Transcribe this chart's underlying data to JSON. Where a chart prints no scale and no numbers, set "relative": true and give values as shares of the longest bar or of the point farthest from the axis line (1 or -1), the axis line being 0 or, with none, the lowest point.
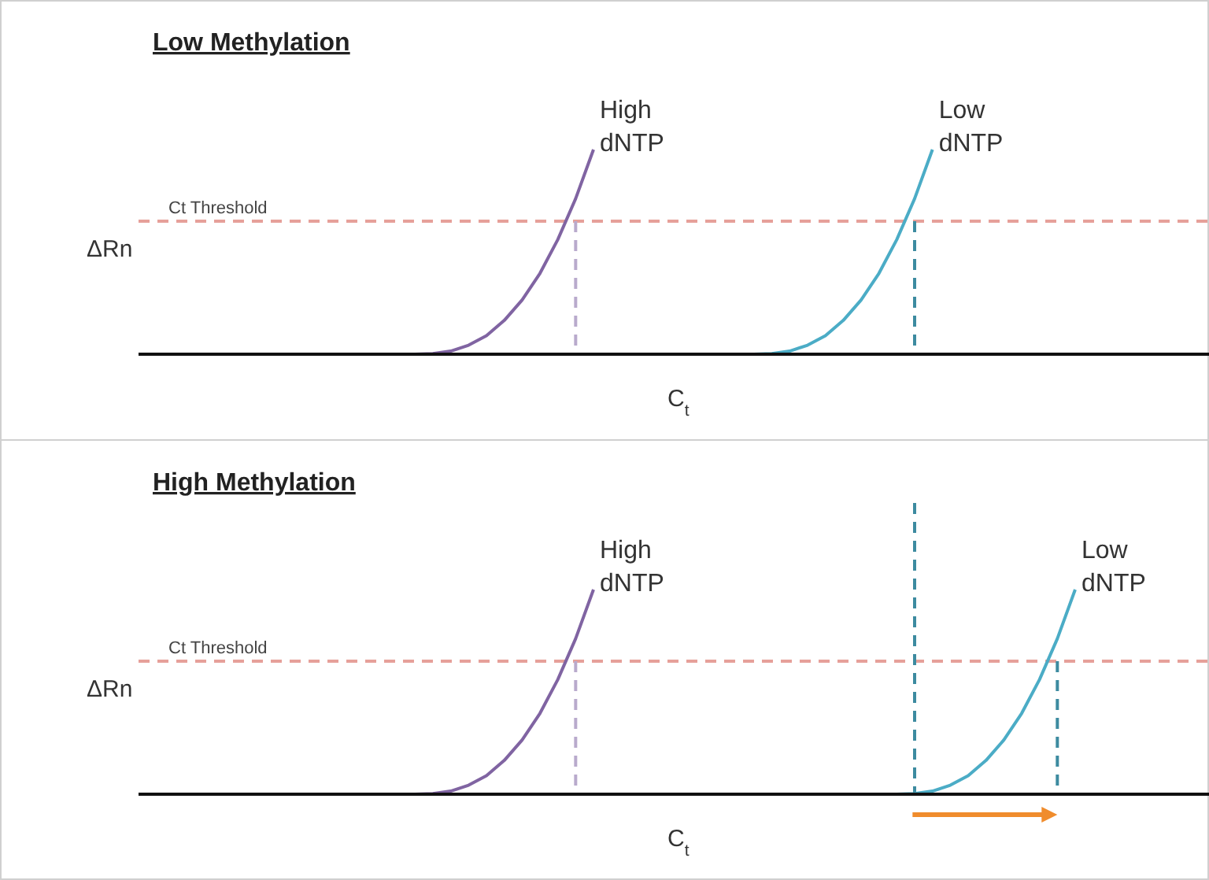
{
  "chart_data": [
    {
      "type": "line",
      "title": "Low Methylation",
      "ylabel": "ΔRn",
      "xlabel": "C$_{t}$",
      "relative": true,
      "line_style": "solid",
      "categories": [
        null,
        null,
        null,
        null,
        null,
        null,
        null,
        null,
        null,
        null,
        null,
        null,
        null,
        null,
        null,
        null,
        null,
        null,
        null,
        null,
        null,
        null,
        null,
        null,
        null,
        null,
        null,
        null,
        null,
        null,
        null,
        null,
        null,
        null,
        null,
        null,
        null,
        null,
        null,
        null,
        null,
        null,
        null,
        null,
        null,
        null,
        null,
        null,
        null,
        null,
        null,
        null,
        null,
        null,
        null,
        null,
        null,
        null,
        null,
        null
      ],
      "series": [
        {
          "name": "High dNTP",
          "color": "#8064a2",
          "values": [
            null,
            null,
            null,
            null,
            null,
            null,
            null,
            null,
            null,
            null,
            null,
            null,
            null,
            null,
            null,
            0,
            0.0025,
            0.015,
            0.044,
            0.09,
            0.165,
            0.265,
            0.395,
            0.56,
            0.76,
            1,
            null,
            null,
            null,
            null,
            null,
            null,
            null,
            null,
            null,
            null,
            null,
            null,
            null,
            null,
            null,
            null,
            null,
            null,
            null,
            null,
            null,
            null,
            null,
            null,
            null,
            null,
            null,
            null,
            null,
            null,
            null,
            null,
            null,
            null
          ]
        },
        {
          "name": "Low dNTP",
          "color": "#4bacc6",
          "values": [
            null,
            null,
            null,
            null,
            null,
            null,
            null,
            null,
            null,
            null,
            null,
            null,
            null,
            null,
            null,
            null,
            null,
            null,
            null,
            null,
            null,
            null,
            null,
            null,
            null,
            null,
            null,
            null,
            null,
            null,
            null,
            null,
            null,
            null,
            0,
            0.0025,
            0.015,
            0.044,
            0.09,
            0.165,
            0.265,
            0.395,
            0.56,
            0.76,
            1,
            null,
            null,
            null,
            null,
            null,
            null,
            null,
            null,
            null,
            null,
            null,
            null,
            null,
            null,
            null
          ]
        }
      ],
      "ref_lines": [
        {
          "axis": "y",
          "value": 0.65,
          "label": "Ct Threshold",
          "color": "#e6a09a",
          "line_style": "dashed"
        }
      ]
    },
    {
      "type": "line",
      "title": "High Methylation",
      "ylabel": "ΔRn",
      "xlabel": "C$_{t}$",
      "relative": true,
      "line_style": "solid",
      "categories": [
        null,
        null,
        null,
        null,
        null,
        null,
        null,
        null,
        null,
        null,
        null,
        null,
        null,
        null,
        null,
        null,
        null,
        null,
        null,
        null,
        null,
        null,
        null,
        null,
        null,
        null,
        null,
        null,
        null,
        null,
        null,
        null,
        null,
        null,
        null,
        null,
        null,
        null,
        null,
        null,
        null,
        null,
        null,
        null,
        null,
        null,
        null,
        null,
        null,
        null,
        null,
        null,
        null,
        null,
        null,
        null,
        null,
        null,
        null,
        null
      ],
      "series": [
        {
          "name": "High dNTP",
          "color": "#8064a2",
          "values": [
            null,
            null,
            null,
            null,
            null,
            null,
            null,
            null,
            null,
            null,
            null,
            null,
            null,
            null,
            null,
            0,
            0.0025,
            0.015,
            0.044,
            0.09,
            0.165,
            0.265,
            0.395,
            0.56,
            0.76,
            1,
            null,
            null,
            null,
            null,
            null,
            null,
            null,
            null,
            null,
            null,
            null,
            null,
            null,
            null,
            null,
            null,
            null,
            null,
            null,
            null,
            null,
            null,
            null,
            null,
            null,
            null,
            null,
            null,
            null,
            null,
            null,
            null,
            null,
            null
          ]
        },
        {
          "name": "Low dNTP",
          "color": "#4bacc6",
          "values": [
            null,
            null,
            null,
            null,
            null,
            null,
            null,
            null,
            null,
            null,
            null,
            null,
            null,
            null,
            null,
            null,
            null,
            null,
            null,
            null,
            null,
            null,
            null,
            null,
            null,
            null,
            null,
            null,
            null,
            null,
            null,
            null,
            null,
            null,
            null,
            null,
            null,
            null,
            null,
            null,
            null,
            null,
            0,
            0.0025,
            0.015,
            0.044,
            0.09,
            0.165,
            0.265,
            0.395,
            0.56,
            0.76,
            1,
            null,
            null,
            null,
            null,
            null,
            null,
            null
          ]
        }
      ],
      "ref_lines": [
        {
          "axis": "y",
          "value": 0.65,
          "label": "Ct Threshold",
          "color": "#e6a09a",
          "line_style": "dashed"
        }
      ]
    }
  ]
}
